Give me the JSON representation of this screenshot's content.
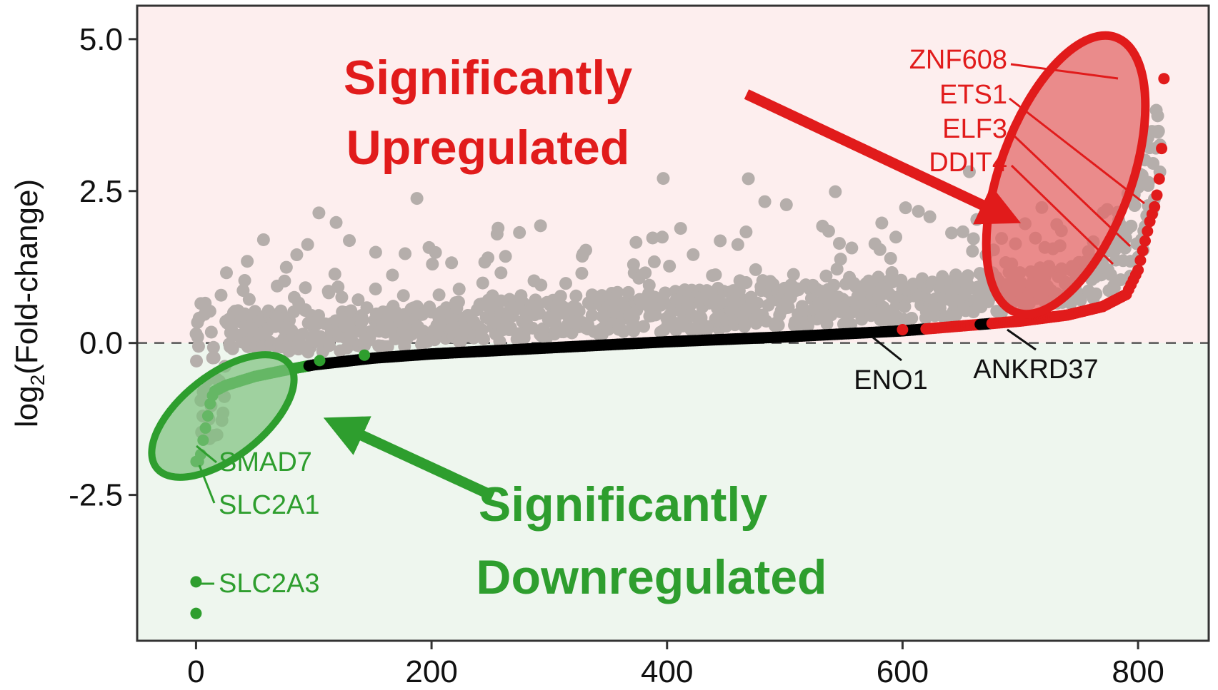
{
  "chart_data": {
    "type": "scatter",
    "title": "",
    "xlabel": "",
    "ylabel_base": "log",
    "ylabel_sub": "2",
    "ylabel_rest": "(Fold-change)",
    "xlim": [
      -50,
      860
    ],
    "ylim": [
      -4.9,
      5.55
    ],
    "xticks": [
      0,
      200,
      400,
      600,
      800
    ],
    "xtick_labels": [
      "0",
      "200",
      "400",
      "600",
      "800"
    ],
    "yticks": [
      5.0,
      2.5,
      0.0,
      -2.5
    ],
    "ytick_labels": [
      "5.0",
      "2.5",
      "0.0",
      "-2.5"
    ],
    "grid": false,
    "reference_line_y": 0,
    "colors": {
      "up_region": "#fdeeee",
      "down_region": "#eef6ee",
      "up": "#e11b1b",
      "down": "#2e9e2e",
      "background_points": "#b5aeab",
      "ranked_points": "#000000",
      "up_highlight": "#e36a6a",
      "down_highlight": "#7ec27e"
    },
    "region_labels": {
      "up": [
        "Significantly",
        "Upregulated"
      ],
      "down": [
        "Significantly",
        "Downregulated"
      ]
    },
    "series": [
      {
        "role": "ranked-fold-change",
        "points": [
          [
            0,
            -4.45
          ],
          [
            0,
            -3.93
          ],
          [
            3,
            -1.95
          ],
          [
            6,
            -1.6
          ],
          [
            9,
            -1.3
          ],
          [
            12,
            -1.0
          ],
          [
            15,
            -0.8
          ],
          [
            25,
            -0.7
          ],
          [
            50,
            -0.55
          ],
          [
            75,
            -0.45
          ],
          [
            100,
            -0.36
          ],
          [
            150,
            -0.25
          ],
          [
            200,
            -0.18
          ],
          [
            300,
            -0.08
          ],
          [
            400,
            0.02
          ],
          [
            500,
            0.1
          ],
          [
            600,
            0.2
          ],
          [
            650,
            0.28
          ],
          [
            700,
            0.36
          ],
          [
            740,
            0.46
          ],
          [
            770,
            0.6
          ],
          [
            790,
            0.8
          ],
          [
            800,
            1.2
          ],
          [
            805,
            1.6
          ],
          [
            810,
            2.0
          ],
          [
            815,
            2.3
          ],
          [
            818,
            2.7
          ],
          [
            820,
            3.2
          ],
          [
            822,
            4.35
          ]
        ]
      }
    ],
    "annotations": [
      {
        "text": "ZNF608",
        "group": "up",
        "x": 822,
        "y": 4.35
      },
      {
        "text": "ETS1",
        "group": "up",
        "x": 815,
        "y": 2.9
      },
      {
        "text": "ELF3",
        "group": "up",
        "x": 810,
        "y": 2.3
      },
      {
        "text": "DDIT4",
        "group": "up",
        "x": 802,
        "y": 1.3
      },
      {
        "text": "ENO1",
        "group": "none",
        "x": 580,
        "y": 0.18
      },
      {
        "text": "ANKRD37",
        "group": "none",
        "x": 690,
        "y": 0.28
      },
      {
        "text": "SMAD7",
        "group": "down",
        "x": 9,
        "y": -1.55
      },
      {
        "text": "SLC2A1",
        "group": "down",
        "x": 8,
        "y": -1.9
      },
      {
        "text": "SLC2A3",
        "group": "down",
        "x": 0,
        "y": -3.93
      }
    ]
  }
}
